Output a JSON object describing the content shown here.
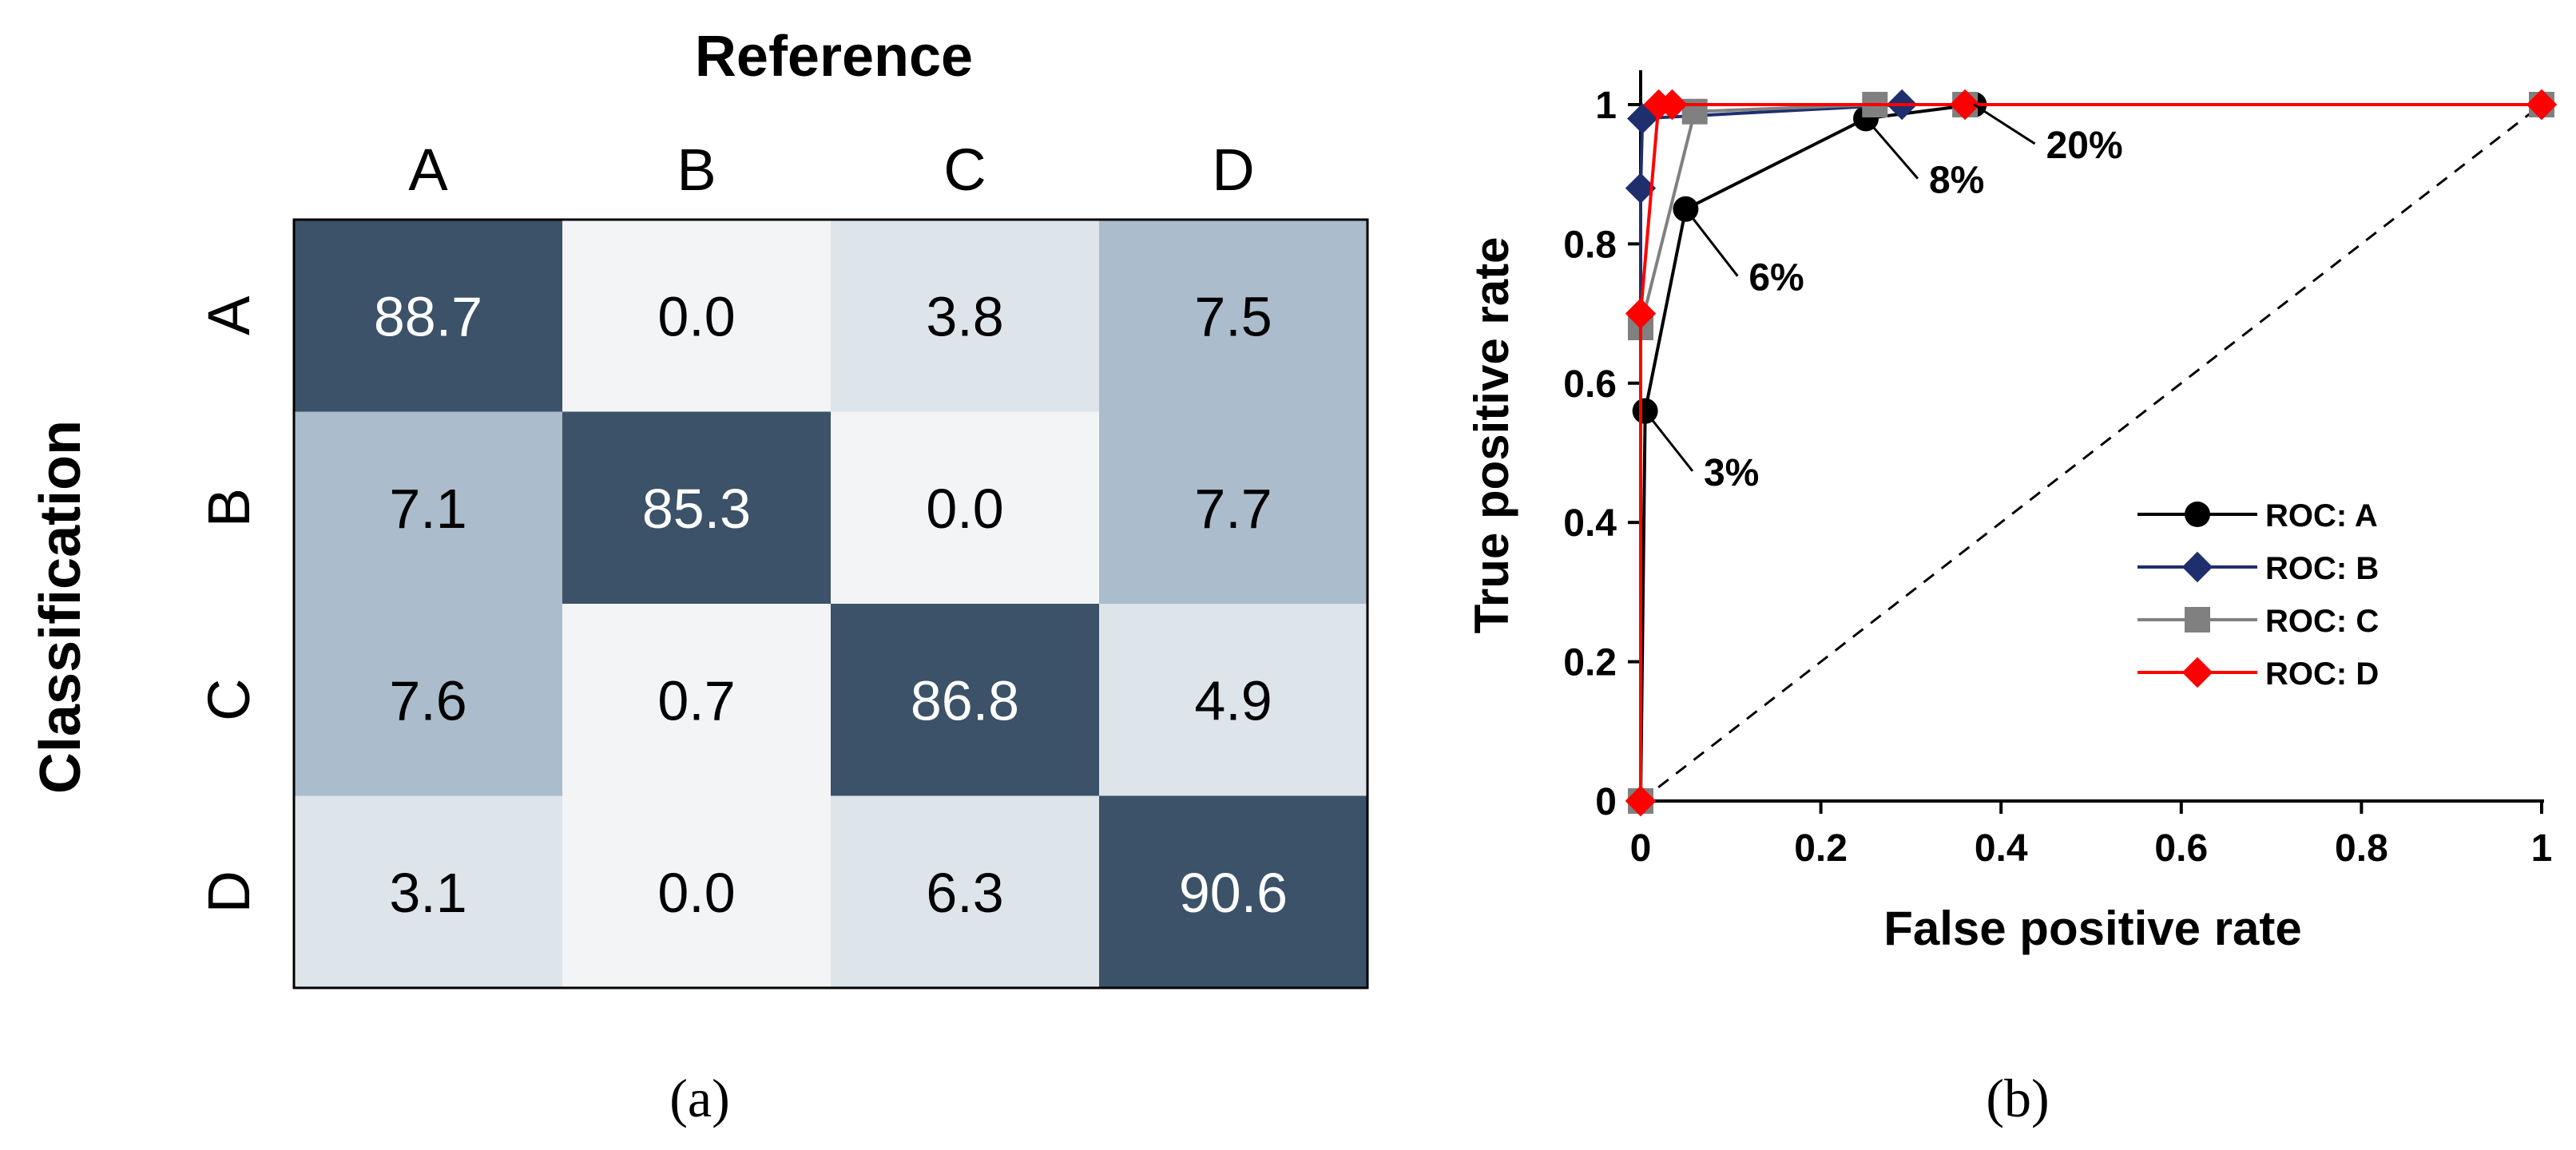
{
  "panels": {
    "a_label": "(a)",
    "b_label": "(b)"
  },
  "chart_data": [
    {
      "type": "heatmap",
      "title": "",
      "xlabel": "Reference",
      "ylabel": "Classification",
      "x_categories": [
        "A",
        "B",
        "C",
        "D"
      ],
      "y_categories": [
        "A",
        "B",
        "C",
        "D"
      ],
      "values": [
        [
          88.7,
          0.0,
          3.8,
          7.5
        ],
        [
          7.1,
          85.3,
          0.0,
          7.7
        ],
        [
          7.6,
          0.7,
          86.8,
          4.9
        ],
        [
          3.1,
          0.0,
          6.3,
          90.6
        ]
      ],
      "value_labels": [
        [
          "88.7",
          "0.0",
          "3.8",
          "7.5"
        ],
        [
          "7.1",
          "85.3",
          "0.0",
          "7.7"
        ],
        [
          "7.6",
          "0.7",
          "86.8",
          "4.9"
        ],
        [
          "3.1",
          "0.0",
          "6.3",
          "90.6"
        ]
      ],
      "color_scale": [
        "#f2f4f6",
        "#dde4ea",
        "#abbccc",
        "#3b5268"
      ]
    },
    {
      "type": "line",
      "title": "",
      "xlabel": "False positive rate",
      "ylabel": "True positive rate",
      "xlim": [
        0,
        1
      ],
      "ylim": [
        0,
        1
      ],
      "x_ticks": [
        0,
        0.2,
        0.4,
        0.6,
        0.8,
        1
      ],
      "x_tick_labels": [
        "0",
        "0.2",
        "0.4",
        "0.6",
        "0.8",
        "1"
      ],
      "y_ticks": [
        0,
        0.2,
        0.4,
        0.6,
        0.8,
        1
      ],
      "y_tick_labels": [
        "0",
        "0.2",
        "0.4",
        "0.6",
        "0.8",
        "1"
      ],
      "grid": false,
      "legend_position": "bottom-right",
      "series": [
        {
          "name": "ROC: A",
          "color": "#000000",
          "marker": "circle",
          "x": [
            0,
            0.005,
            0.05,
            0.25,
            0.37,
            1
          ],
          "y": [
            0,
            0.56,
            0.85,
            0.98,
            1.0,
            1.0
          ]
        },
        {
          "name": "ROC: B",
          "color": "#1f2f6e",
          "marker": "diamond",
          "x": [
            0,
            0,
            0.002,
            0.29,
            1
          ],
          "y": [
            0,
            0.88,
            0.98,
            1.0,
            1.0
          ]
        },
        {
          "name": "ROC: C",
          "color": "#808080",
          "marker": "square",
          "x": [
            0,
            0,
            0.06,
            0.26,
            0.36,
            1
          ],
          "y": [
            0,
            0.68,
            0.99,
            1.0,
            1.0,
            1.0
          ]
        },
        {
          "name": "ROC: D",
          "color": "#ff0000",
          "marker": "diamond",
          "x": [
            0,
            0,
            0.02,
            0.035,
            0.36,
            1
          ],
          "y": [
            0,
            0.7,
            1.0,
            1.0,
            1.0,
            1.0
          ]
        }
      ],
      "reference_line": {
        "x": [
          0,
          1
        ],
        "y": [
          0,
          1
        ],
        "style": "dashed",
        "color": "#000000"
      },
      "annotations": [
        {
          "text": "3%",
          "x": 0.005,
          "y": 0.56,
          "tx": 0.07,
          "ty": 0.46
        },
        {
          "text": "6%",
          "x": 0.05,
          "y": 0.85,
          "tx": 0.12,
          "ty": 0.74
        },
        {
          "text": "8%",
          "x": 0.25,
          "y": 0.98,
          "tx": 0.32,
          "ty": 0.88
        },
        {
          "text": "20%",
          "x": 0.37,
          "y": 1.0,
          "tx": 0.45,
          "ty": 0.93
        }
      ]
    }
  ]
}
